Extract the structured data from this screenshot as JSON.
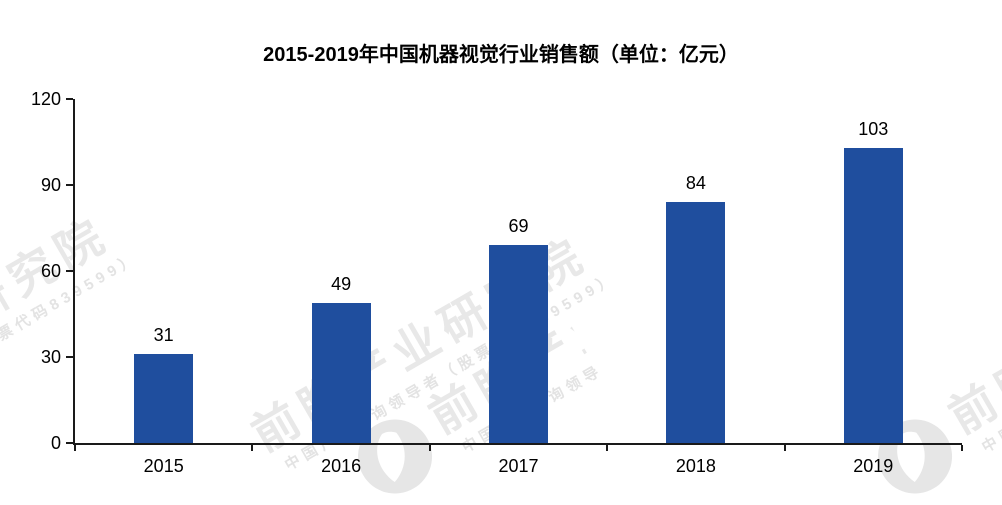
{
  "page": {
    "background": "#ffffff"
  },
  "chart_data": {
    "type": "bar",
    "title": "2015-2019年中国机器视觉行业销售额（单位：亿元）",
    "categories": [
      "2015",
      "2016",
      "2017",
      "2018",
      "2019"
    ],
    "values": [
      31,
      49,
      69,
      84,
      103
    ],
    "xlabel": "",
    "ylabel": "",
    "ylim": [
      0,
      120
    ],
    "yticks": [
      0,
      30,
      60,
      90,
      120
    ],
    "grid": false,
    "legend": false,
    "value_labels_shown": true,
    "bar_color": "#1F4E9E",
    "axis_color": "#1a1a1a",
    "text_color": "#000000"
  },
  "watermark": {
    "brand_large": "前瞻产业研究院",
    "brand_small": "中国产业咨询领导者（股票代码839599）",
    "logo_icon": "qianzhan-circle-logo",
    "color_hex": "#e8e8e8"
  }
}
